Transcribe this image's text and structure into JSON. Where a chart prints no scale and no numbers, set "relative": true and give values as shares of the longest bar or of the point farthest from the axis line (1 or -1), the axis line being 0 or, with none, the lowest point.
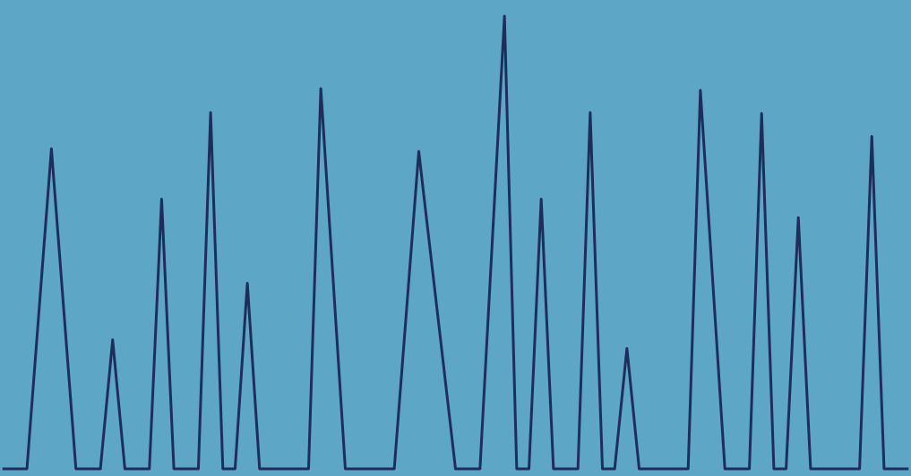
{
  "chart_data": {
    "type": "line",
    "relative": true,
    "tick_labels": false,
    "grid": false,
    "marker": "none",
    "line_style": "solid",
    "categories": [
      null,
      null,
      null,
      null,
      null,
      null,
      null,
      null,
      null,
      null,
      null,
      null,
      null,
      null,
      null,
      null,
      null,
      null,
      null,
      null,
      null,
      null,
      null,
      null,
      null,
      null,
      null,
      null,
      null,
      null,
      null,
      null,
      null,
      null,
      null,
      null,
      null,
      null,
      null,
      null,
      null,
      null,
      null,
      null,
      null,
      null,
      null,
      null,
      null,
      null,
      null,
      null,
      null,
      null,
      null,
      null,
      null,
      null,
      null,
      null,
      null,
      null,
      null,
      null,
      null,
      null,
      null,
      null,
      null,
      null,
      null,
      null,
      null,
      null,
      null
    ],
    "series": [
      {
        "color": "#1f2d5c",
        "values": [
          0,
          0,
          0,
          0.354,
          0.707,
          0.354,
          0,
          0,
          0,
          0.285,
          0,
          0,
          0,
          0.596,
          0,
          0,
          0,
          0.787,
          0,
          0,
          0.41,
          0,
          0,
          0,
          0,
          0,
          0.84,
          0.42,
          0,
          0,
          0,
          0,
          0,
          0.35,
          0.701,
          0.467,
          0.234,
          0,
          0,
          0,
          0.5,
          1,
          0,
          0,
          0.596,
          0,
          0,
          0,
          0.787,
          0,
          0,
          0.266,
          0,
          0,
          0,
          0,
          0,
          0.836,
          0.418,
          0,
          0,
          0,
          0.785,
          0,
          0,
          0.555,
          0,
          0,
          0,
          0,
          0,
          0.734,
          0,
          0,
          0
        ]
      }
    ]
  }
}
